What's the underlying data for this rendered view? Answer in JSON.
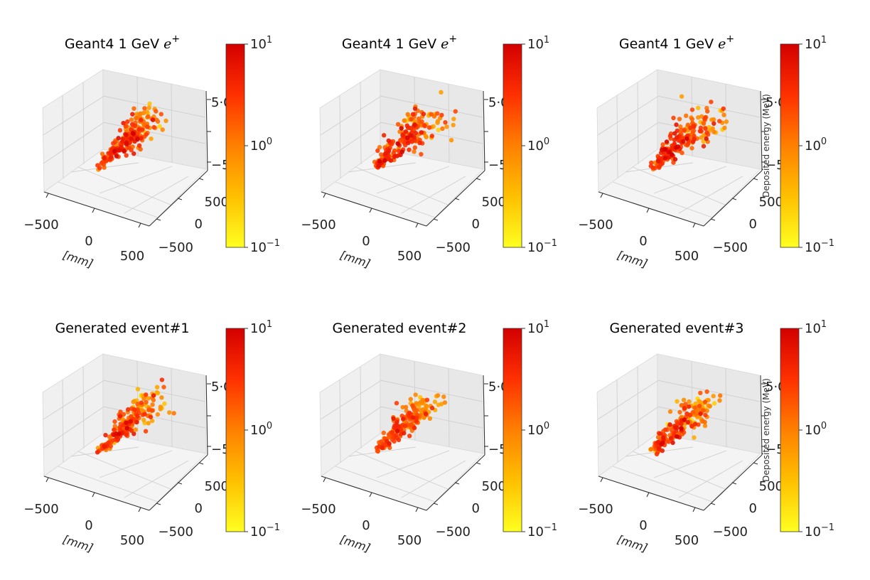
{
  "figure": {
    "tick_x": [
      "−500",
      "0",
      "500"
    ],
    "tick_y": [
      "500",
      "0",
      "−500"
    ],
    "tick_z": [
      "5·0",
      "−5·0"
    ],
    "axis_label": "[mm]",
    "colorbar": {
      "top": "10^1",
      "mid": "10^0",
      "bottom": "10^-1",
      "label": "Deposited energy (MeV)"
    }
  },
  "chart_data": [
    {
      "type": "scatter",
      "title": "Geant4 1 GeV e+",
      "xlabel": "[mm]",
      "colorbar_label": "",
      "colorbar_range": [
        0.1,
        10
      ],
      "colorbar_scale": "log",
      "colormap": [
        "#ffff20",
        "#ffc000",
        "#ff8000",
        "#ff3000",
        "#d40000"
      ],
      "seed": 11,
      "shower": {
        "spread": 1.0,
        "brightness": 0.25
      }
    },
    {
      "type": "scatter",
      "title": "Geant4 1 GeV e+",
      "xlabel": "[mm]",
      "colorbar_label": "",
      "colorbar_range": [
        0.1,
        10
      ],
      "colorbar_scale": "log",
      "colormap": [
        "#ffff20",
        "#ffc000",
        "#ff8000",
        "#ff3000",
        "#d40000"
      ],
      "seed": 23,
      "shower": {
        "spread": 1.25,
        "brightness": 0.2
      }
    },
    {
      "type": "scatter",
      "title": "Geant4 1 GeV e+",
      "xlabel": "[mm]",
      "colorbar_label": "Deposited energy (MeV)",
      "colorbar_range": [
        0.1,
        10
      ],
      "colorbar_scale": "log",
      "colormap": [
        "#ffff20",
        "#ffc000",
        "#ff8000",
        "#ff3000",
        "#d40000"
      ],
      "seed": 37,
      "shower": {
        "spread": 1.35,
        "brightness": 0.15
      }
    },
    {
      "type": "scatter",
      "title": "Generated event#1",
      "xlabel": "[mm]",
      "colorbar_label": "",
      "colorbar_range": [
        0.1,
        10
      ],
      "colorbar_scale": "log",
      "colormap": [
        "#ffff20",
        "#ffc000",
        "#ff8000",
        "#ff3000",
        "#d40000"
      ],
      "seed": 41,
      "shower": {
        "spread": 0.95,
        "brightness": 0.45
      }
    },
    {
      "type": "scatter",
      "title": "Generated event#2",
      "xlabel": "[mm]",
      "colorbar_label": "",
      "colorbar_range": [
        0.1,
        10
      ],
      "colorbar_scale": "log",
      "colormap": [
        "#ffff20",
        "#ffc000",
        "#ff8000",
        "#ff3000",
        "#d40000"
      ],
      "seed": 53,
      "shower": {
        "spread": 1.0,
        "brightness": 0.5
      }
    },
    {
      "type": "scatter",
      "title": "Generated event#3",
      "xlabel": "[mm]",
      "colorbar_label": "Deposited energy (MeV)",
      "colorbar_range": [
        0.1,
        10
      ],
      "colorbar_scale": "log",
      "colormap": [
        "#ffff20",
        "#ffc000",
        "#ff8000",
        "#ff3000",
        "#d40000"
      ],
      "seed": 67,
      "shower": {
        "spread": 1.05,
        "brightness": 0.5
      }
    }
  ]
}
